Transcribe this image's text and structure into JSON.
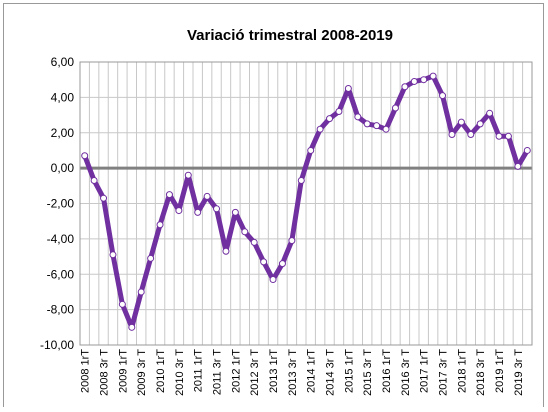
{
  "chart_data": {
    "type": "line",
    "title": "Variació trimestral 2008-2019",
    "categories": [
      "2008 1rT",
      null,
      "2008 3r T",
      null,
      "2009 1rT",
      null,
      "2009 3r T",
      null,
      "2010 1rT",
      null,
      "2010 3r T",
      null,
      "2011 1rT",
      null,
      "2011 3r T",
      null,
      "2012 1rT",
      null,
      "2012 3r T",
      null,
      "2013 1rT",
      null,
      "2013 3r T",
      null,
      "2014 1rT",
      null,
      "2014 3r T",
      null,
      "2015 1rT",
      null,
      "2015 3r T",
      null,
      "2016 1rT",
      null,
      "2016 3r T",
      null,
      "2017 1rT",
      null,
      "2017 3r T",
      null,
      "2018 1rT",
      null,
      "2018 3r T",
      null,
      "2019 1rT",
      null,
      "2019 3r T",
      null
    ],
    "values": [
      0.7,
      -0.7,
      -1.7,
      -4.9,
      -7.7,
      -9.0,
      -7.0,
      -5.1,
      -3.2,
      -1.5,
      -2.4,
      -0.4,
      -2.5,
      -1.6,
      -2.3,
      -4.7,
      -2.5,
      -3.6,
      -4.2,
      -5.3,
      -6.3,
      -5.4,
      -4.1,
      -0.7,
      1.0,
      2.2,
      2.8,
      3.2,
      4.5,
      2.9,
      2.5,
      2.4,
      2.2,
      3.4,
      4.6,
      4.9,
      5.0,
      5.2,
      4.1,
      1.9,
      2.6,
      1.9,
      2.5,
      3.1,
      1.8,
      1.8,
      0.1,
      1.0
    ],
    "color": "#7030a0",
    "ylim": [
      -10,
      6
    ],
    "yticks": [
      {
        "value": -10,
        "label": "-10,00"
      },
      {
        "value": -8,
        "label": "-8,00"
      },
      {
        "value": -6,
        "label": "-6,00"
      },
      {
        "value": -4,
        "label": "-4,00"
      },
      {
        "value": -2,
        "label": "-2,00"
      },
      {
        "value": 0,
        "label": "0,00"
      },
      {
        "value": 2,
        "label": "2,00"
      },
      {
        "value": 4,
        "label": "4,00"
      },
      {
        "value": 6,
        "label": "6,00"
      }
    ],
    "grid": true
  }
}
